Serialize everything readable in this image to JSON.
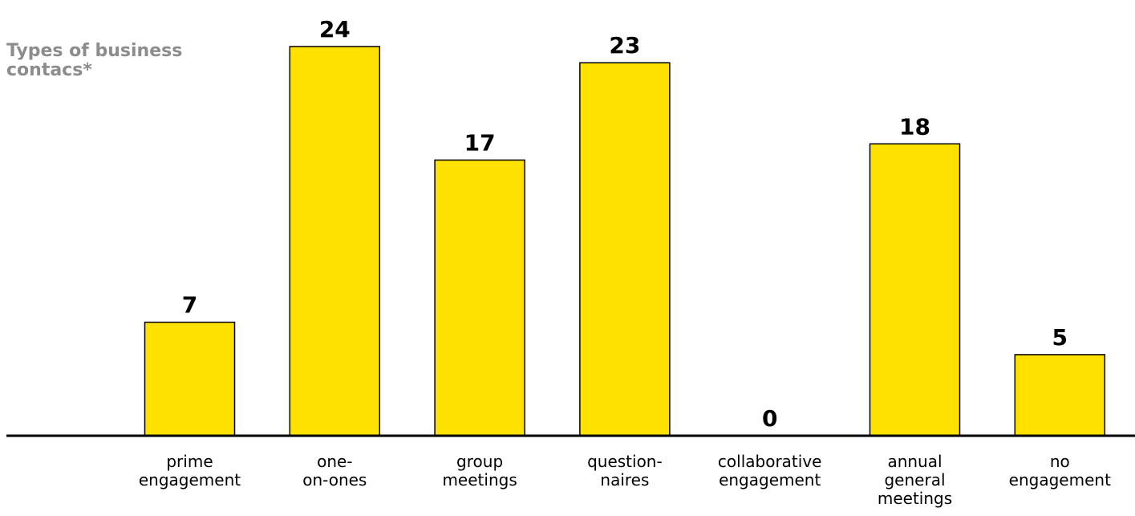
{
  "chart_data": {
    "type": "bar",
    "title": "Types of business\ncontacs*",
    "categories": [
      "prime engagement",
      "one-on-ones",
      "group meetings",
      "question-naires",
      "collaborative engagement",
      "annual general meetings",
      "no engagement"
    ],
    "category_lines": [
      [
        "prime",
        "engagement"
      ],
      [
        "one-",
        "on-ones"
      ],
      [
        "group",
        "meetings"
      ],
      [
        "question-",
        "naires"
      ],
      [
        "collaborative",
        "engagement"
      ],
      [
        "annual",
        "general",
        "meetings"
      ],
      [
        "no",
        "engagement"
      ]
    ],
    "values": [
      7,
      24,
      17,
      23,
      0,
      18,
      5
    ],
    "ylim": [
      0,
      24
    ],
    "grid": false,
    "legend": "none",
    "bar_color": "#ffe100",
    "axis_color": "#000000",
    "title_color": "#8c8c8c"
  }
}
